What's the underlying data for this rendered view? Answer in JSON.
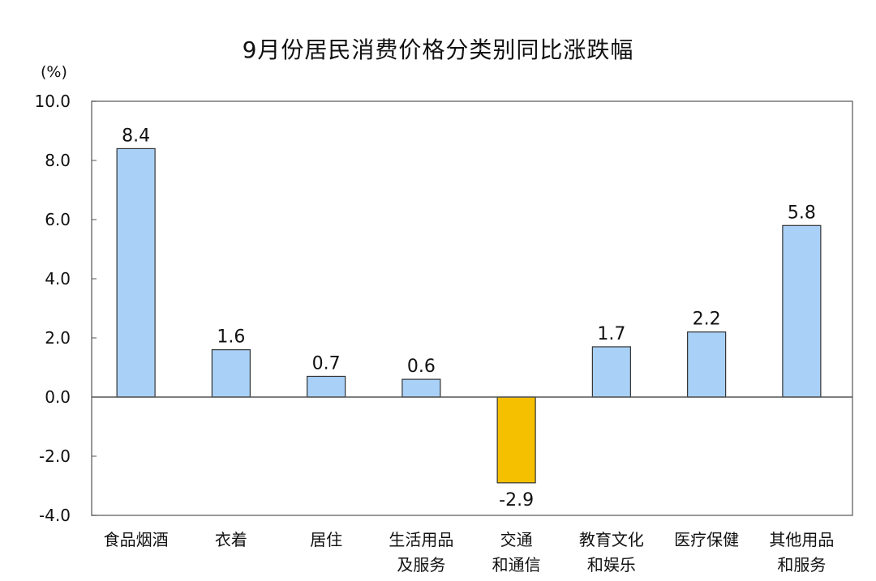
{
  "chart_data": {
    "type": "bar",
    "title": "9月份居民消费价格分类别同比涨跌幅",
    "y_unit": "(%)",
    "ylim": [
      -4.0,
      10.0
    ],
    "y_ticks": [
      10.0,
      8.0,
      6.0,
      4.0,
      2.0,
      0.0,
      -2.0,
      -4.0
    ],
    "y_tick_labels": [
      "10.0",
      "8.0",
      "6.0",
      "4.0",
      "2.0",
      "0.0",
      "-2.0",
      "-4.0"
    ],
    "categories": [
      [
        "食品烟酒"
      ],
      [
        "衣着"
      ],
      [
        "居住"
      ],
      [
        "生活用品",
        "及服务"
      ],
      [
        "交通",
        "和通信"
      ],
      [
        "教育文化",
        "和娱乐"
      ],
      [
        "医疗保健"
      ],
      [
        "其他用品",
        "和服务"
      ]
    ],
    "values": [
      8.4,
      1.6,
      0.7,
      0.6,
      -2.9,
      1.7,
      2.2,
      5.8
    ],
    "value_labels": [
      "8.4",
      "1.6",
      "0.7",
      "0.6",
      "-2.9",
      "1.7",
      "2.2",
      "5.8"
    ],
    "colors": {
      "positive": "#a9d1f7",
      "negative": "#f5c000",
      "border": "#333333"
    },
    "grid": false
  }
}
